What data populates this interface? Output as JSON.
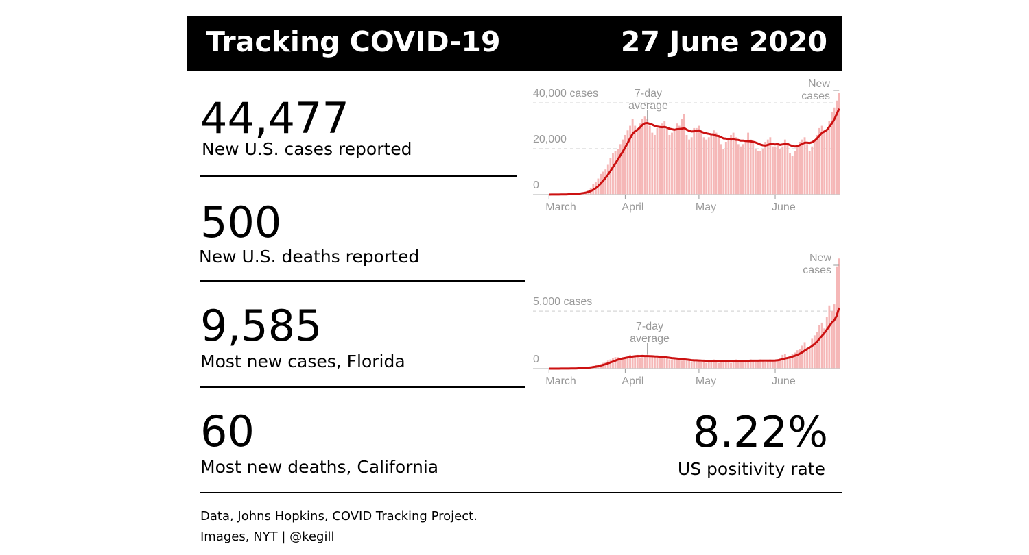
{
  "header": {
    "title": "Tracking COVID-19",
    "date": "27 June 2020"
  },
  "stats": [
    {
      "value": "44,477",
      "label": "New U.S. cases reported"
    },
    {
      "value": "500",
      "label": "New U.S. deaths reported"
    },
    {
      "value": "9,585",
      "label": "Most new cases, Florida"
    },
    {
      "value": "60",
      "label": "Most new deaths, California"
    }
  ],
  "positivity": {
    "value": "8.22%",
    "label": "US positivity rate"
  },
  "footer": [
    "Data, Johns Hopkins, COVID Tracking Project.",
    "Images, NYT | @kegill"
  ],
  "chart_data": [
    {
      "type": "bar",
      "x": [
        0,
        1,
        2,
        3,
        4,
        5,
        6,
        7,
        8,
        9,
        10,
        11,
        12,
        13,
        14,
        15,
        16,
        17,
        18,
        19,
        20,
        21,
        22,
        23,
        24,
        25,
        26,
        27,
        28,
        29,
        30,
        31,
        32,
        33,
        34,
        35,
        36,
        37,
        38,
        39,
        40,
        41,
        42,
        43,
        44,
        45,
        46,
        47,
        48,
        49,
        50,
        51,
        52,
        53,
        54,
        55,
        56,
        57,
        58,
        59,
        60,
        61,
        62,
        63,
        64,
        65,
        66,
        67,
        68,
        69,
        70,
        71,
        72,
        73,
        74,
        75,
        76,
        77,
        78,
        79,
        80,
        81,
        82,
        83,
        84,
        85,
        86,
        87,
        88,
        89,
        90,
        91,
        92,
        93,
        94,
        95,
        96,
        97,
        98,
        99,
        100,
        101,
        102,
        103,
        104,
        105,
        106,
        107,
        108,
        109,
        110,
        111,
        112,
        113,
        114,
        115,
        116,
        117,
        118
      ],
      "series": [
        {
          "name": "New cases",
          "type": "bar",
          "color": "#f5b7b7",
          "values": [
            10,
            20,
            30,
            40,
            60,
            80,
            120,
            150,
            200,
            300,
            400,
            500,
            600,
            700,
            1000,
            1300,
            2000,
            3000,
            4500,
            5500,
            7000,
            9000,
            10000,
            11000,
            13000,
            16000,
            18000,
            19000,
            20000,
            22000,
            24000,
            26000,
            28000,
            30000,
            33000,
            30000,
            28000,
            31000,
            33000,
            34000,
            33000,
            30000,
            27000,
            26000,
            29000,
            30000,
            31000,
            32000,
            29000,
            26000,
            27000,
            28000,
            31000,
            30000,
            33000,
            35000,
            26000,
            24000,
            25000,
            29000,
            29000,
            30000,
            28000,
            25000,
            24000,
            25000,
            26000,
            28000,
            27000,
            26000,
            22000,
            20000,
            23000,
            24000,
            26000,
            27000,
            25000,
            22000,
            21000,
            22000,
            23000,
            27000,
            24000,
            23000,
            20000,
            19000,
            19000,
            20000,
            23000,
            24000,
            25000,
            21000,
            21000,
            22000,
            20000,
            21000,
            24000,
            22000,
            18000,
            17000,
            19000,
            21000,
            23000,
            24000,
            25000,
            22000,
            19000,
            21000,
            24000,
            26000,
            29000,
            30000,
            28000,
            28000,
            32000,
            36000,
            38000,
            41000,
            44477
          ]
        },
        {
          "name": "7-day average",
          "type": "line",
          "color": "#cc1111",
          "values": [
            10,
            15,
            20,
            30,
            40,
            55,
            75,
            100,
            140,
            190,
            260,
            340,
            430,
            540,
            680,
            870,
            1150,
            1550,
            2100,
            2800,
            3700,
            4800,
            6000,
            7300,
            8700,
            10300,
            12000,
            13600,
            15300,
            17000,
            18700,
            20600,
            22500,
            24600,
            26500,
            27600,
            28300,
            29300,
            30400,
            31100,
            31200,
            30900,
            30500,
            30000,
            29700,
            29500,
            29400,
            29500,
            29200,
            28700,
            28500,
            28300,
            28500,
            28600,
            28700,
            29000,
            28300,
            27800,
            27500,
            27600,
            27800,
            28000,
            27400,
            27000,
            26700,
            26500,
            26300,
            26200,
            25700,
            25500,
            25000,
            24500,
            24400,
            24200,
            24000,
            24100,
            23900,
            23800,
            23500,
            23500,
            23400,
            23300,
            23200,
            23000,
            22700,
            22300,
            21800,
            21500,
            21400,
            21700,
            22000,
            22000,
            21900,
            22000,
            21700,
            21900,
            22000,
            22100,
            21600,
            21200,
            21000,
            21100,
            21600,
            22100,
            22600,
            22600,
            22500,
            22800,
            23500,
            24500,
            25700,
            26900,
            27500,
            28200,
            29600,
            31000,
            32700,
            35000,
            37500
          ]
        }
      ],
      "xlim": [
        -6.5,
        118.5
      ],
      "xticks": [
        {
          "value": 0,
          "label": "March"
        },
        {
          "value": 31,
          "label": "April"
        },
        {
          "value": 61,
          "label": "May"
        },
        {
          "value": 92,
          "label": "June"
        }
      ],
      "ylim": [
        0,
        46000
      ],
      "yticks": [
        0,
        {
          "value": 20000,
          "label": "20,000"
        },
        {
          "value": 40000,
          "label": "40,000 cases"
        }
      ],
      "grid": true
    },
    {
      "type": "bar",
      "x": [
        0,
        1,
        2,
        3,
        4,
        5,
        6,
        7,
        8,
        9,
        10,
        11,
        12,
        13,
        14,
        15,
        16,
        17,
        18,
        19,
        20,
        21,
        22,
        23,
        24,
        25,
        26,
        27,
        28,
        29,
        30,
        31,
        32,
        33,
        34,
        35,
        36,
        37,
        38,
        39,
        40,
        41,
        42,
        43,
        44,
        45,
        46,
        47,
        48,
        49,
        50,
        51,
        52,
        53,
        54,
        55,
        56,
        57,
        58,
        59,
        60,
        61,
        62,
        63,
        64,
        65,
        66,
        67,
        68,
        69,
        70,
        71,
        72,
        73,
        74,
        75,
        76,
        77,
        78,
        79,
        80,
        81,
        82,
        83,
        84,
        85,
        86,
        87,
        88,
        89,
        90,
        91,
        92,
        93,
        94,
        95,
        96,
        97,
        98,
        99,
        100,
        101,
        102,
        103,
        104,
        105,
        106,
        107,
        108,
        109,
        110,
        111,
        112,
        113,
        114,
        115,
        116,
        117,
        118
      ],
      "series": [
        {
          "name": "New cases",
          "type": "bar",
          "color": "#f5b7b7",
          "values": [
            0,
            0,
            1,
            1,
            2,
            3,
            5,
            8,
            10,
            15,
            20,
            30,
            40,
            60,
            80,
            100,
            150,
            200,
            250,
            300,
            350,
            400,
            500,
            600,
            700,
            800,
            900,
            1000,
            1000,
            900,
            1000,
            1000,
            1100,
            1200,
            1000,
            1100,
            1200,
            900,
            1000,
            1100,
            1200,
            1000,
            1100,
            1000,
            900,
            1000,
            1000,
            900,
            900,
            800,
            800,
            900,
            800,
            800,
            700,
            800,
            700,
            700,
            600,
            700,
            800,
            700,
            600,
            700,
            500,
            600,
            700,
            800,
            600,
            500,
            700,
            600,
            700,
            600,
            500,
            700,
            800,
            700,
            600,
            700,
            600,
            700,
            800,
            700,
            600,
            700,
            800,
            700,
            600,
            700,
            800,
            700,
            700,
            800,
            900,
            1200,
            1300,
            1000,
            1100,
            1300,
            1400,
            1600,
            1700,
            2000,
            2300,
            1800,
            1700,
            2600,
            2900,
            3200,
            3800,
            4000,
            3500,
            4500,
            5500,
            5000,
            5600,
            8900,
            9585
          ]
        },
        {
          "name": "7-day average",
          "type": "line",
          "color": "#cc1111",
          "values": [
            0,
            0,
            1,
            1,
            2,
            3,
            4,
            6,
            8,
            11,
            15,
            20,
            27,
            36,
            48,
            62,
            82,
            106,
            135,
            170,
            210,
            260,
            320,
            390,
            460,
            540,
            620,
            700,
            780,
            840,
            890,
            930,
            970,
            1020,
            1050,
            1080,
            1100,
            1100,
            1110,
            1100,
            1100,
            1090,
            1080,
            1070,
            1060,
            1040,
            1020,
            1000,
            980,
            950,
            920,
            900,
            880,
            860,
            830,
            810,
            790,
            770,
            740,
            720,
            720,
            710,
            700,
            690,
            680,
            680,
            680,
            670,
            660,
            660,
            660,
            650,
            650,
            650,
            650,
            660,
            660,
            670,
            670,
            670,
            670,
            680,
            690,
            690,
            690,
            690,
            700,
            700,
            700,
            700,
            700,
            700,
            710,
            730,
            770,
            820,
            880,
            930,
            980,
            1050,
            1120,
            1200,
            1300,
            1420,
            1560,
            1700,
            1830,
            1980,
            2150,
            2350,
            2600,
            2850,
            3100,
            3400,
            3700,
            4000,
            4200,
            4600,
            5300
          ]
        }
      ],
      "xlim": [
        -6.5,
        118.5
      ],
      "xticks": [
        {
          "value": 0,
          "label": "March"
        },
        {
          "value": 31,
          "label": "April"
        },
        {
          "value": 61,
          "label": "May"
        },
        {
          "value": 92,
          "label": "June"
        }
      ],
      "ylim": [
        0,
        9600
      ],
      "yticks": [
        0,
        {
          "value": 5000,
          "label": "5,000 cases"
        }
      ],
      "grid": true
    }
  ]
}
